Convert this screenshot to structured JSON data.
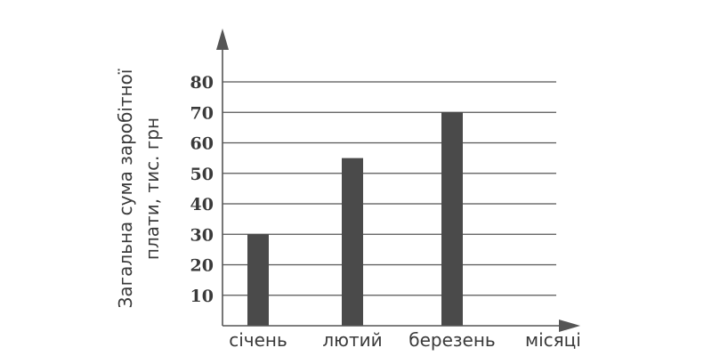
{
  "chart_data": {
    "type": "bar",
    "categories": [
      "січень",
      "лютий",
      "березень"
    ],
    "values": [
      30,
      55,
      70
    ],
    "ylabel_lines": [
      "Загальна сума заробітної",
      "плати, тис. грн"
    ],
    "xlabel": "місяці",
    "ylim": [
      0,
      80
    ],
    "yticks": [
      10,
      20,
      30,
      40,
      50,
      60,
      70,
      80
    ],
    "grid": true,
    "bar_color": "#4a4a4a",
    "axis_color": "#555555"
  }
}
